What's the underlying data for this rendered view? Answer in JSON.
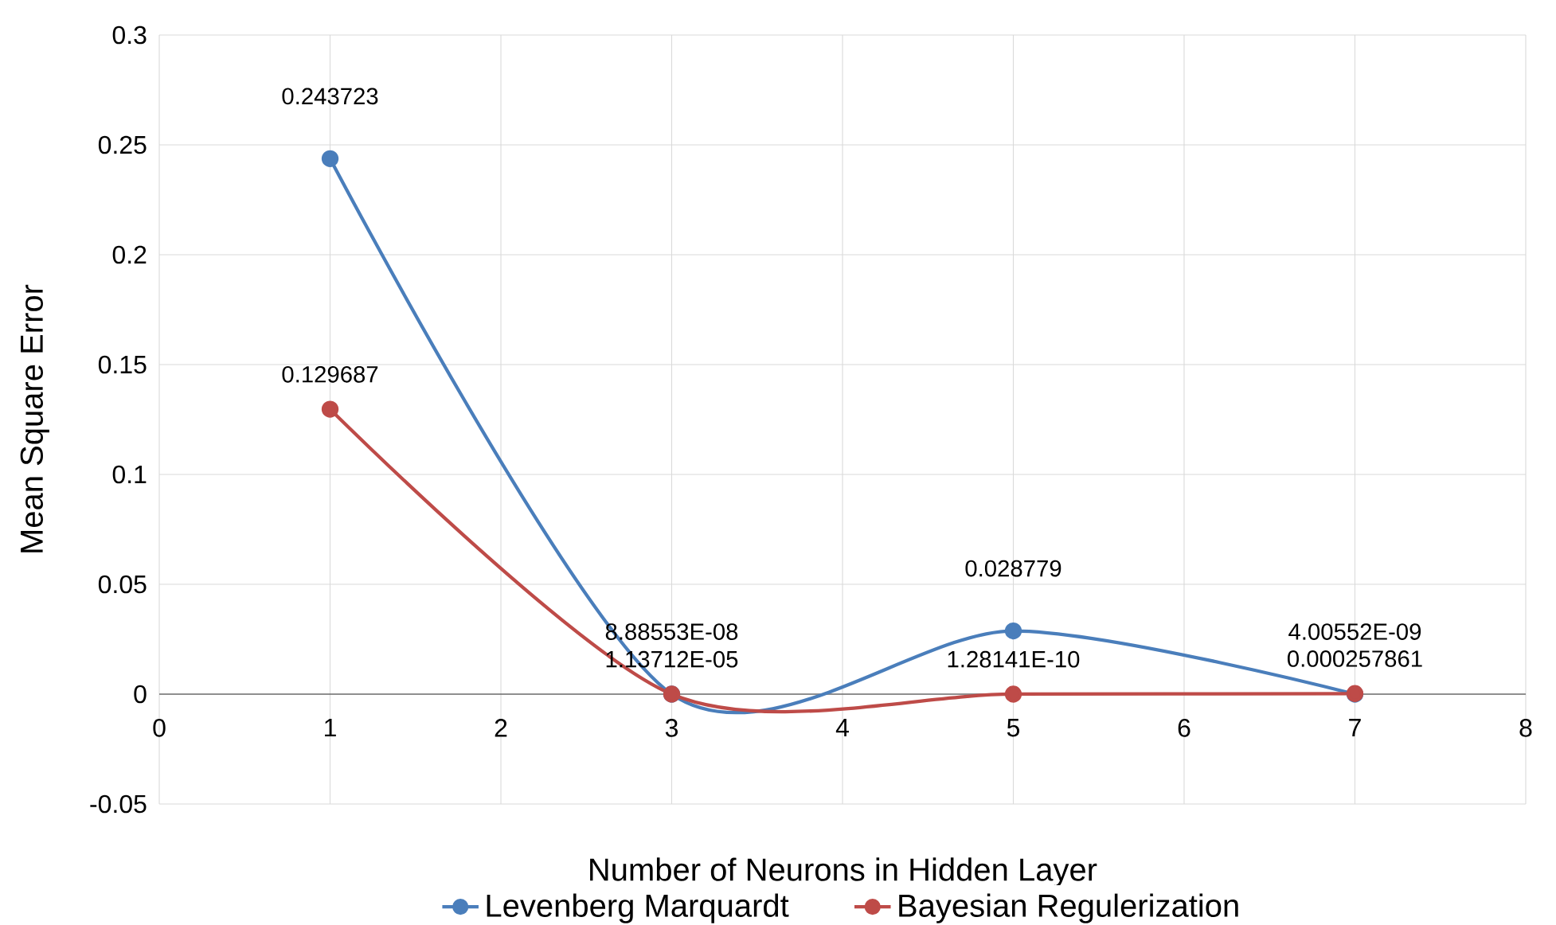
{
  "chart_data": {
    "type": "line",
    "xlabel": "Number of Neurons in Hidden Layer",
    "ylabel": "Mean Square Error",
    "x": [
      1,
      3,
      5,
      7
    ],
    "series": [
      {
        "name": "Levenberg Marquardt",
        "color": "#4a7ebb",
        "values": [
          0.243723,
          8.88553e-08,
          0.028779,
          4.00552e-09
        ],
        "value_labels": [
          "0.243723",
          "8.88553E-08",
          "0.028779",
          "4.00552E-09"
        ]
      },
      {
        "name": "Bayesian Regulerization",
        "color": "#be4b48",
        "values": [
          0.129687,
          1.13712e-05,
          1.28141e-10,
          0.000257861
        ],
        "value_labels": [
          "0.129687",
          "1.13712E-05",
          "1.28141E-10",
          "0.000257861"
        ]
      }
    ],
    "xlim": [
      0,
      8
    ],
    "xticks": [
      0,
      1,
      2,
      3,
      4,
      5,
      6,
      7,
      8
    ],
    "ylim": [
      -0.05,
      0.3
    ],
    "yticks": [
      -0.05,
      0,
      0.05,
      0.1,
      0.15,
      0.2,
      0.25,
      0.3
    ],
    "grid": true,
    "legend": "bottom",
    "marker": "circle",
    "line_style": "solid"
  }
}
